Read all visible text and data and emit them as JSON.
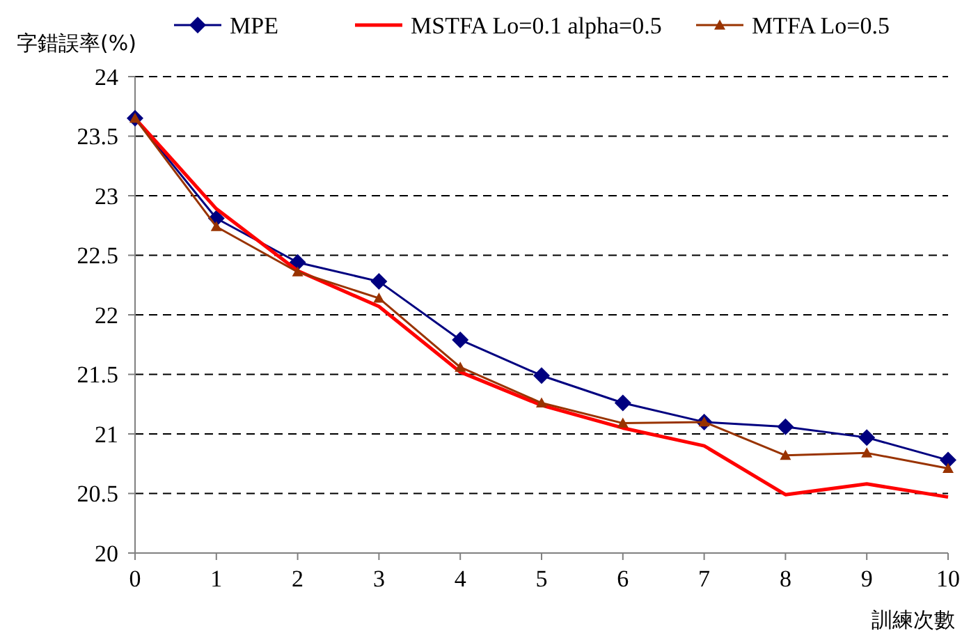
{
  "chart_data": {
    "type": "line",
    "xlabel": "訓練次數",
    "ylabel": "字錯誤率(%)",
    "x": [
      0,
      1,
      2,
      3,
      4,
      5,
      6,
      7,
      8,
      9,
      10
    ],
    "series": [
      {
        "name": "MPE",
        "color": "#000080",
        "marker": "diamond",
        "values": [
          23.65,
          22.81,
          22.44,
          22.28,
          21.79,
          21.49,
          21.26,
          21.1,
          21.06,
          20.97,
          20.78
        ]
      },
      {
        "name": "MSTFA Lo=0.1 alpha=0.5",
        "color": "#ff0000",
        "marker": "none",
        "values": [
          23.65,
          22.89,
          22.37,
          22.07,
          21.52,
          21.24,
          21.05,
          20.9,
          20.49,
          20.58,
          20.47
        ]
      },
      {
        "name": "MTFA Lo=0.5",
        "color": "#993300",
        "marker": "triangle",
        "values": [
          23.65,
          22.74,
          22.36,
          22.14,
          21.56,
          21.26,
          21.09,
          21.1,
          20.82,
          20.84,
          20.71
        ]
      }
    ],
    "xlim": [
      0,
      10
    ],
    "xticks": [
      0,
      1,
      2,
      3,
      4,
      5,
      6,
      7,
      8,
      9,
      10
    ],
    "ylim": [
      20,
      24
    ],
    "yticks": [
      20,
      20.5,
      21,
      21.5,
      22,
      22.5,
      23,
      23.5,
      24
    ],
    "grid": "y",
    "legend": "top",
    "line_style": "solid"
  }
}
